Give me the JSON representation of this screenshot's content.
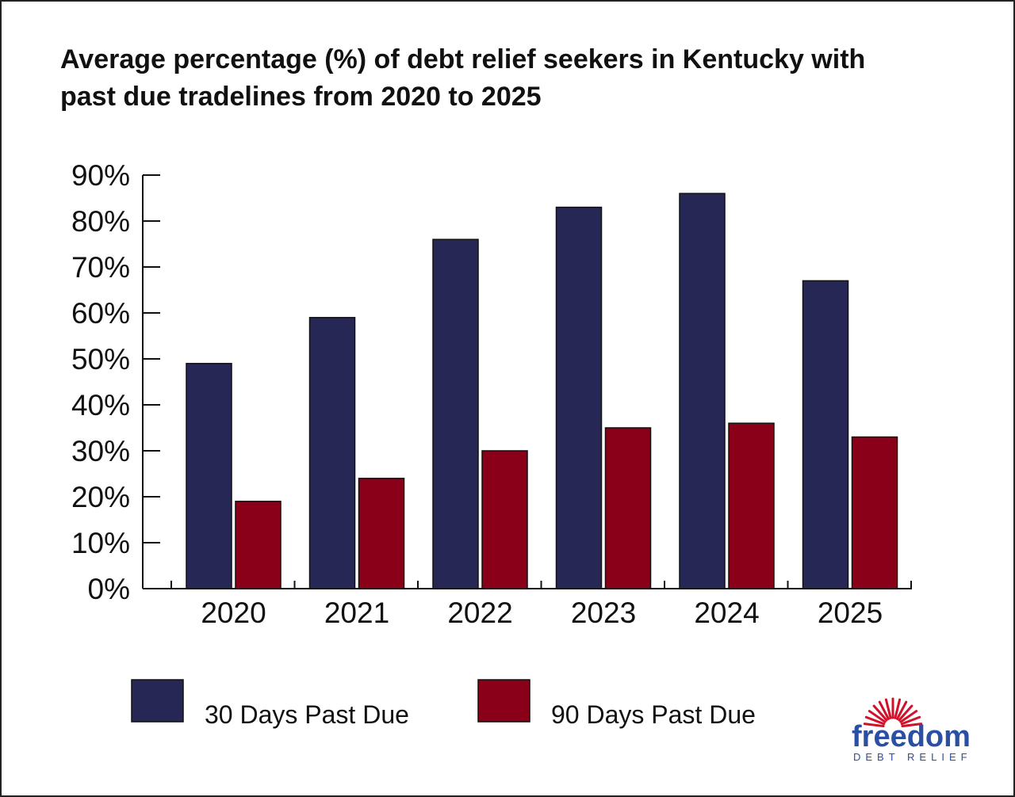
{
  "title_lines": [
    "Average percentage (%) of debt relief seekers in Kentucky with",
    "past due tradelines from 2020 to 2025"
  ],
  "logo": {
    "name": "freedom",
    "tagline": "DEBT RELIEF",
    "color": "#2a4fa3",
    "sun_color": "#d2102a"
  },
  "chart_data": {
    "type": "bar",
    "title": "Average percentage (%) of debt relief seekers in Kentucky with past due tradelines from 2020 to 2025",
    "xlabel": "",
    "ylabel": "",
    "categories": [
      "2020",
      "2021",
      "2022",
      "2023",
      "2024",
      "2025"
    ],
    "series": [
      {
        "name": "30 Days Past Due",
        "color": "#262755",
        "values": [
          49,
          59,
          76,
          83,
          86,
          67
        ]
      },
      {
        "name": "90 Days Past Due",
        "color": "#8b0019",
        "values": [
          19,
          24,
          30,
          35,
          36,
          33
        ]
      }
    ],
    "ylim": [
      0,
      90
    ],
    "yticks": [
      0,
      10,
      20,
      30,
      40,
      50,
      60,
      70,
      80,
      90
    ],
    "ytick_labels": [
      "0%",
      "10%",
      "20%",
      "30%",
      "40%",
      "50%",
      "60%",
      "70%",
      "80%",
      "90%"
    ],
    "grid": false,
    "legend_position": "bottom"
  }
}
